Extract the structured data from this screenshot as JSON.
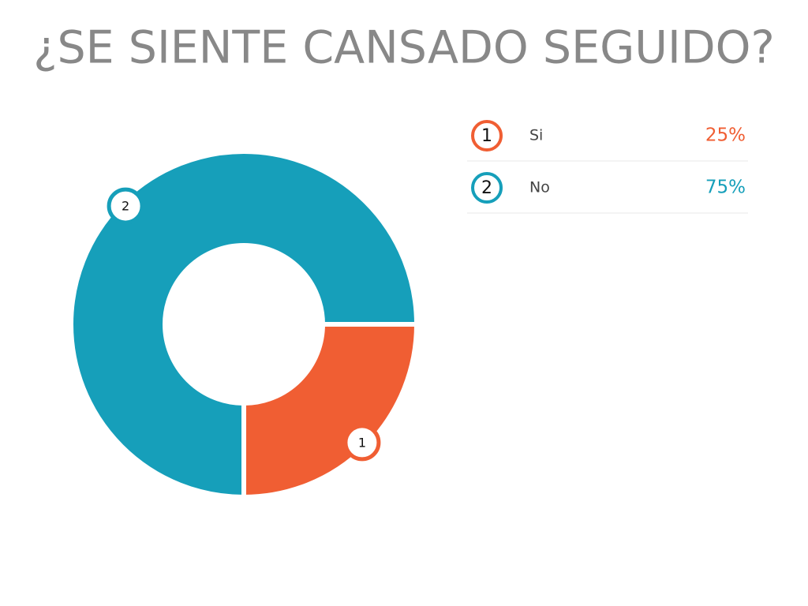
{
  "chart_data": {
    "type": "donut",
    "title": "¿SE SIENTE CANSADO SEGUIDO?",
    "categories": [
      "Si",
      "No"
    ],
    "values": [
      25,
      75
    ],
    "value_labels": [
      "25%",
      "75%"
    ],
    "markers": [
      "1",
      "2"
    ],
    "colors": [
      "#f05e33",
      "#169fba"
    ]
  }
}
